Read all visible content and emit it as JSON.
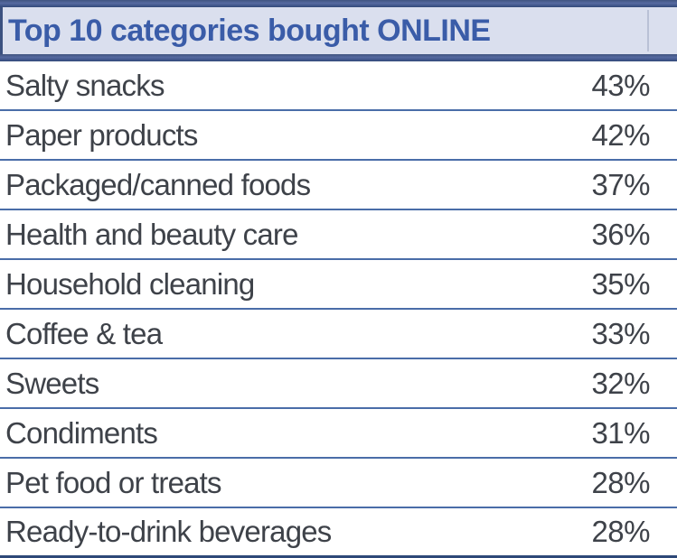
{
  "chart_data": {
    "type": "table",
    "title": "Top 10 categories bought ONLINE",
    "categories": [
      "Salty snacks",
      "Paper products",
      "Packaged/canned foods",
      "Health and beauty care",
      "Household cleaning",
      "Coffee & tea",
      "Sweets",
      "Condiments",
      "Pet food or treats",
      "Ready-to-drink beverages"
    ],
    "values": [
      43,
      42,
      37,
      36,
      35,
      33,
      32,
      31,
      28,
      28
    ],
    "value_format": "percent",
    "legend_position": "none",
    "grid": "row-rules"
  },
  "table": {
    "title": "Top 10 categories bought ONLINE",
    "rows": [
      {
        "category": "Salty snacks",
        "value": "43%"
      },
      {
        "category": "Paper products",
        "value": "42%"
      },
      {
        "category": "Packaged/canned foods",
        "value": "37%"
      },
      {
        "category": "Health and beauty care",
        "value": "36%"
      },
      {
        "category": "Household cleaning",
        "value": "35%"
      },
      {
        "category": "Coffee & tea",
        "value": "33%"
      },
      {
        "category": "Sweets",
        "value": "32%"
      },
      {
        "category": "Condiments",
        "value": "31%"
      },
      {
        "category": "Pet food or treats",
        "value": "28%"
      },
      {
        "category": "Ready-to-drink beverages",
        "value": "28%"
      }
    ]
  },
  "colors": {
    "header_fill": "#dadfee",
    "header_text": "#3a5ca8",
    "thick_border": "#3b5180",
    "row_rule": "#4a6da8",
    "bottom_rule": "#2d4878",
    "row_text": "#3e4249"
  }
}
